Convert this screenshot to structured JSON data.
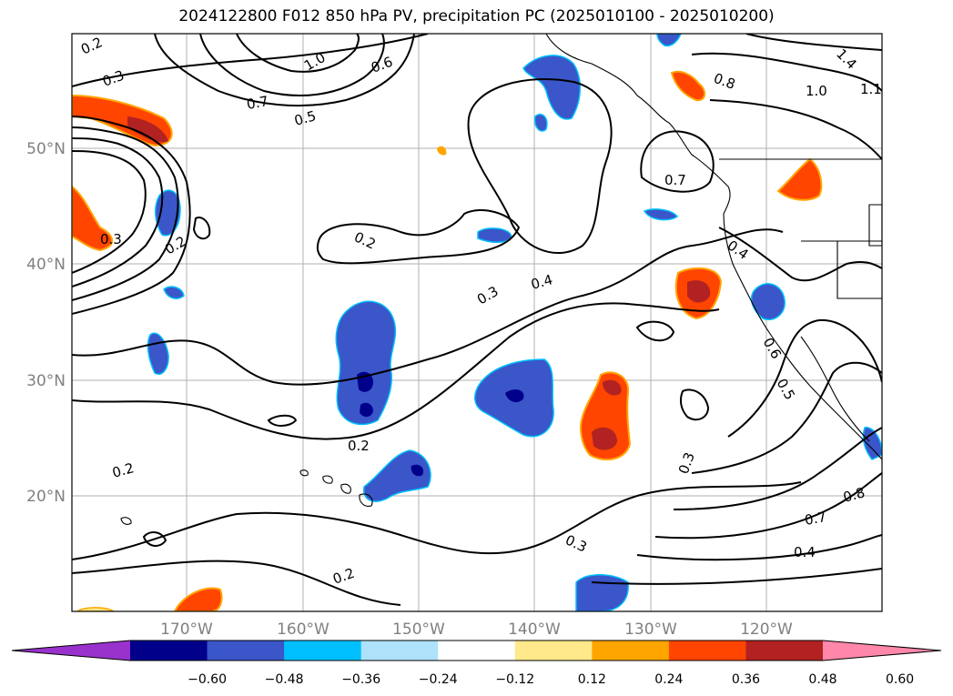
{
  "title": "2024122800 F012 850 hPa PV, precipitation PC (2025010100 - 2025010200)",
  "map": {
    "lat_labels": [
      "50°N",
      "40°N",
      "30°N",
      "20°N"
    ],
    "lon_labels": [
      "170°W",
      "160°W",
      "150°W",
      "140°W",
      "130°W",
      "120°W"
    ],
    "contour_labels": [
      "0.2",
      "0.3",
      "0.5",
      "0.7",
      "1.0",
      "0.6",
      "0.8",
      "1.0",
      "1.1",
      "1.4",
      "0.7",
      "0.2",
      "0.3",
      "0.4",
      "0.3",
      "0.2",
      "0.2",
      "0.2",
      "0.2",
      "0.3",
      "0.4",
      "0.6",
      "0.5",
      "0.3",
      "0.8",
      "0.7",
      "0.4"
    ]
  },
  "colorbar": {
    "labels": [
      "−0.60",
      "−0.48",
      "−0.36",
      "−0.24",
      "−0.12",
      "0.12",
      "0.24",
      "0.36",
      "0.48",
      "0.60"
    ],
    "colors": [
      "#9932cc",
      "#00008b",
      "#3a56c9",
      "#00bfff",
      "#aee2fa",
      "#ffffff",
      "#ffe98a",
      "#ffa500",
      "#ff4500",
      "#b22222",
      "#ff88aa"
    ]
  }
}
